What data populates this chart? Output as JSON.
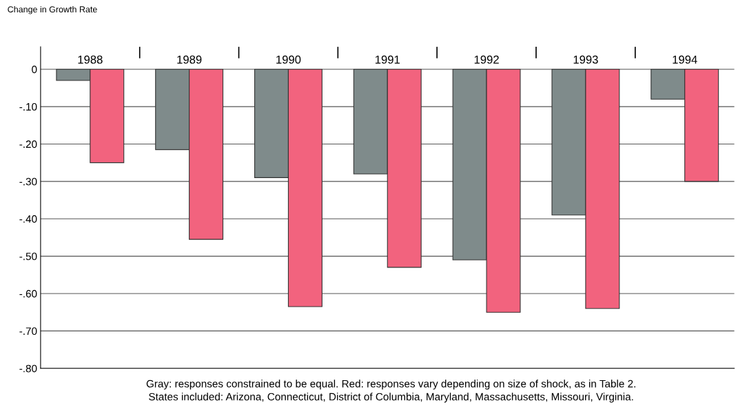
{
  "chart_data": {
    "type": "bar",
    "ylabel": "Change in Growth Rate",
    "categories": [
      "1988",
      "1989",
      "1990",
      "1991",
      "1992",
      "1993",
      "1994"
    ],
    "series": [
      {
        "color": "#7f8b8b",
        "values": [
          -0.03,
          -0.215,
          -0.29,
          -0.28,
          -0.51,
          -0.39,
          -0.08
        ]
      },
      {
        "color": "#f2637e",
        "values": [
          -0.25,
          -0.455,
          -0.635,
          -0.53,
          -0.65,
          -0.64,
          -0.3
        ]
      }
    ],
    "ylim": [
      -0.8,
      0.06
    ],
    "yticks": [
      0,
      {
        "value": -0.1,
        "label": "-.10"
      },
      {
        "value": -0.2,
        "label": "-.20"
      },
      {
        "value": -0.3,
        "label": "-.30"
      },
      {
        "value": -0.4,
        "label": "-.40"
      },
      {
        "value": -0.5,
        "label": "-.50"
      },
      {
        "value": -0.6,
        "label": "-.60"
      },
      {
        "value": -0.7,
        "label": "-.70"
      },
      {
        "value": -0.8,
        "label": "-.80"
      }
    ],
    "grid": "y",
    "legend": false,
    "annotations": [
      "Gray: responses constrained to be equal. Red: responses vary depending on size of shock, as in Table 2.",
      "States included: Arizona, Connecticut, District of Columbia, Maryland, Massachusetts, Missouri, Virginia."
    ]
  }
}
